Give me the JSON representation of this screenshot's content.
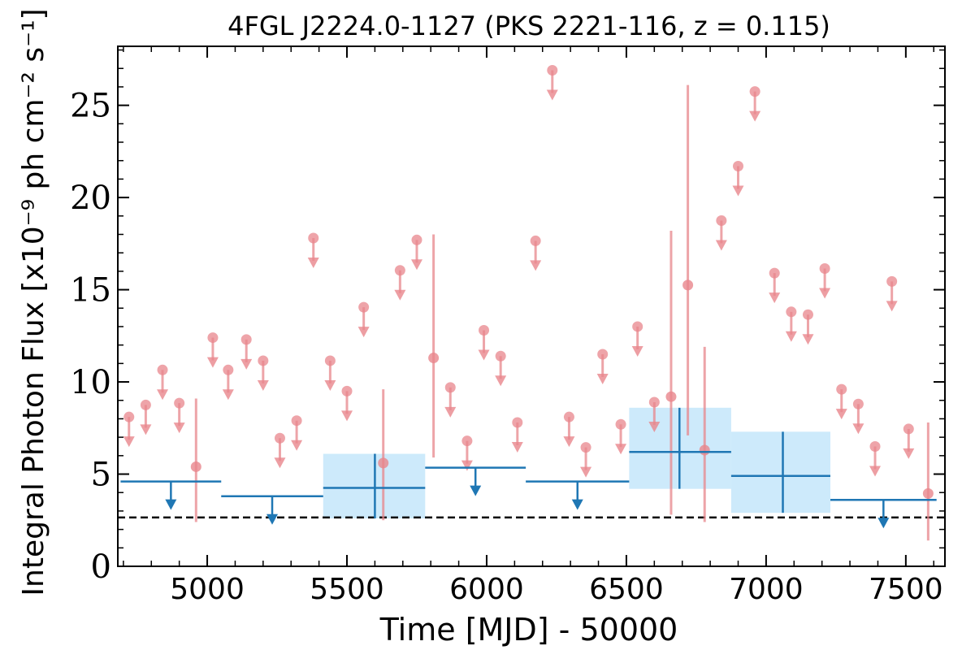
{
  "chart_data": {
    "type": "scatter",
    "title": "4FGL J2224.0-1127 (PKS 2221-116, z = 0.115)",
    "xlabel": "Time [MJD] - 50000",
    "ylabel": "Integral Photon Flux [x10⁻⁹ ph cm⁻² s⁻¹]",
    "xlim": [
      4680,
      7640
    ],
    "ylim": [
      0,
      28.2
    ],
    "x_ticks": [
      5000,
      5500,
      6000,
      6500,
      7000,
      7500
    ],
    "y_ticks": [
      0,
      5,
      10,
      15,
      20,
      25
    ],
    "grid": false,
    "legend": "none",
    "colors": {
      "short_bins": "#e8868c",
      "long_bins": "#1f77b4",
      "band_fill": "#cdeafb",
      "baseline": "#000000"
    },
    "baseline_y": 2.65,
    "series": [
      {
        "bin": "short",
        "upper_limits": [
          {
            "x": 4720,
            "y": 8.1
          },
          {
            "x": 4780,
            "y": 8.75
          },
          {
            "x": 4840,
            "y": 10.65
          },
          {
            "x": 4900,
            "y": 8.85
          },
          {
            "x": 5020,
            "y": 12.4
          },
          {
            "x": 5075,
            "y": 10.65
          },
          {
            "x": 5140,
            "y": 12.3
          },
          {
            "x": 5200,
            "y": 11.15
          },
          {
            "x": 5260,
            "y": 6.95
          },
          {
            "x": 5320,
            "y": 7.9
          },
          {
            "x": 5380,
            "y": 17.8
          },
          {
            "x": 5440,
            "y": 11.15
          },
          {
            "x": 5500,
            "y": 9.5
          },
          {
            "x": 5560,
            "y": 14.05
          },
          {
            "x": 5690,
            "y": 16.05
          },
          {
            "x": 5750,
            "y": 17.7
          },
          {
            "x": 5870,
            "y": 9.7
          },
          {
            "x": 5930,
            "y": 6.8
          },
          {
            "x": 5990,
            "y": 12.8
          },
          {
            "x": 6050,
            "y": 11.4
          },
          {
            "x": 6110,
            "y": 7.8
          },
          {
            "x": 6175,
            "y": 17.65
          },
          {
            "x": 6235,
            "y": 26.9
          },
          {
            "x": 6295,
            "y": 8.1
          },
          {
            "x": 6355,
            "y": 6.45
          },
          {
            "x": 6415,
            "y": 11.5
          },
          {
            "x": 6480,
            "y": 7.7
          },
          {
            "x": 6540,
            "y": 13.0
          },
          {
            "x": 6600,
            "y": 8.9
          },
          {
            "x": 6840,
            "y": 18.75
          },
          {
            "x": 6900,
            "y": 21.7
          },
          {
            "x": 6960,
            "y": 25.75
          },
          {
            "x": 7030,
            "y": 15.9
          },
          {
            "x": 7090,
            "y": 13.8
          },
          {
            "x": 7150,
            "y": 13.65
          },
          {
            "x": 7210,
            "y": 16.15
          },
          {
            "x": 7270,
            "y": 9.6
          },
          {
            "x": 7330,
            "y": 8.8
          },
          {
            "x": 7390,
            "y": 6.5
          },
          {
            "x": 7450,
            "y": 15.45
          },
          {
            "x": 7510,
            "y": 7.45
          }
        ],
        "detections": [
          {
            "x": 4960,
            "y": 5.4,
            "y_lo": 2.4,
            "y_hi": 9.1
          },
          {
            "x": 5630,
            "y": 5.6,
            "y_lo": 2.5,
            "y_hi": 9.6
          },
          {
            "x": 5810,
            "y": 11.3,
            "y_lo": 5.9,
            "y_hi": 18.0
          },
          {
            "x": 6660,
            "y": 9.2,
            "y_lo": 2.8,
            "y_hi": 18.2
          },
          {
            "x": 6720,
            "y": 15.25,
            "y_lo": 7.1,
            "y_hi": 26.1
          },
          {
            "x": 6780,
            "y": 6.3,
            "y_lo": 2.4,
            "y_hi": 11.9
          },
          {
            "x": 7580,
            "y": 3.95,
            "y_lo": 1.4,
            "y_hi": 7.8
          }
        ]
      },
      {
        "bin": "long",
        "upper_limits": [
          {
            "x0": 4690,
            "x1": 5050,
            "y": 4.6
          },
          {
            "x0": 5050,
            "x1": 5415,
            "y": 3.8
          },
          {
            "x0": 5780,
            "x1": 6140,
            "y": 5.35
          },
          {
            "x0": 6140,
            "x1": 6510,
            "y": 4.6
          },
          {
            "x0": 7230,
            "x1": 7610,
            "y": 3.6
          }
        ],
        "detections": [
          {
            "x": 5600,
            "x0": 5415,
            "x1": 5780,
            "y": 4.25,
            "y_lo": 2.6,
            "y_hi": 6.1
          },
          {
            "x": 6690,
            "x0": 6510,
            "x1": 6875,
            "y": 6.2,
            "y_lo": 4.2,
            "y_hi": 8.6
          },
          {
            "x": 7060,
            "x0": 6875,
            "x1": 7230,
            "y": 4.9,
            "y_lo": 2.9,
            "y_hi": 7.3
          }
        ]
      }
    ]
  }
}
